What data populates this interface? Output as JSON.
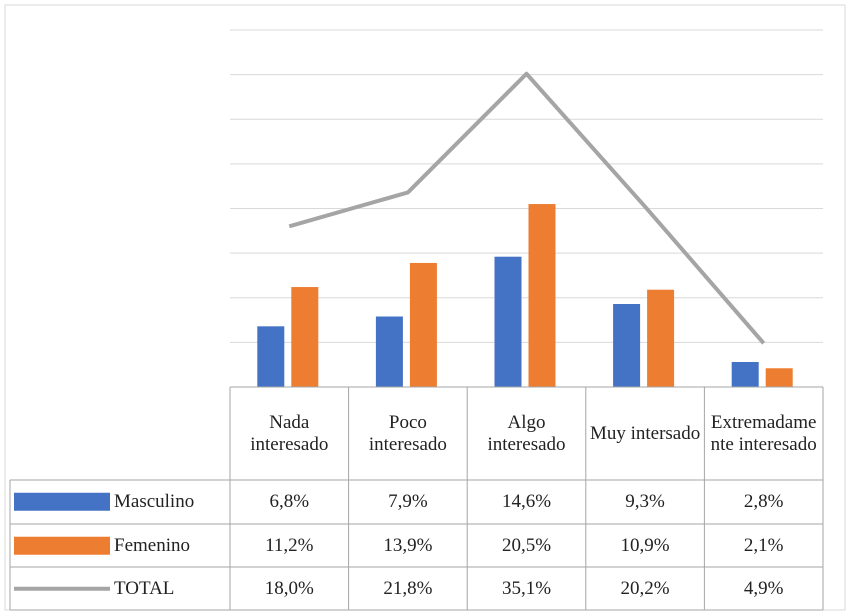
{
  "chart_data": {
    "type": "bar",
    "categories": [
      "Nada interesado",
      "Poco interesado",
      "Algo interesado",
      "Muy intersado",
      "Extremadamente interesado"
    ],
    "series": [
      {
        "name": "Masculino",
        "type": "bar",
        "color": "#4472c4",
        "values": [
          6.8,
          7.9,
          14.6,
          9.3,
          2.8
        ],
        "value_labels": [
          "6,8%",
          "7,9%",
          "14,6%",
          "9,3%",
          "2,8%"
        ]
      },
      {
        "name": "Femenino",
        "type": "bar",
        "color": "#ed7d31",
        "values": [
          11.2,
          13.9,
          20.5,
          10.9,
          2.1
        ],
        "value_labels": [
          "11,2%",
          "13,9%",
          "20,5%",
          "10,9%",
          "2,1%"
        ]
      },
      {
        "name": "TOTAL",
        "type": "line",
        "color": "#a5a5a5",
        "values": [
          18.0,
          21.8,
          35.1,
          20.2,
          4.9
        ],
        "value_labels": [
          "18,0%",
          "21,8%",
          "35,1%",
          "20,2%",
          "4,9%"
        ]
      }
    ],
    "ylim": [
      0,
      40
    ],
    "yticks": [
      0,
      5,
      10,
      15,
      20,
      25,
      30,
      35,
      40
    ],
    "grid": true
  }
}
